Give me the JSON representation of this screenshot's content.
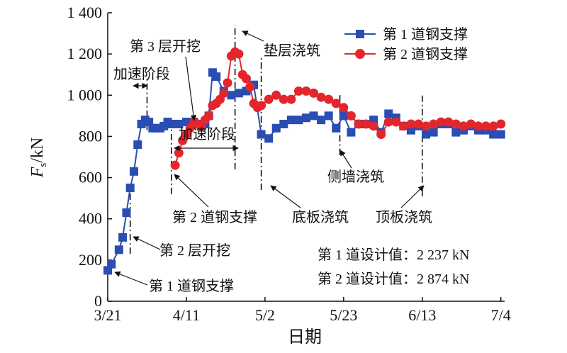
{
  "chart_data": {
    "type": "line",
    "xlabel": "日期",
    "ylabel": "F_s/kN",
    "ylabel_main": "F",
    "ylabel_sub": "s",
    "ylabel_unit": "/kN",
    "ylim": [
      0,
      1400
    ],
    "yticks": [
      0,
      200,
      400,
      600,
      800,
      1000,
      1200,
      1400
    ],
    "ytick_labels": [
      "0",
      "200",
      "400",
      "600",
      "800",
      "1 000",
      "1 200",
      "1 400"
    ],
    "xticks": [
      0,
      21,
      42,
      63,
      84,
      105
    ],
    "xtick_labels": [
      "3/21",
      "4/11",
      "5/2",
      "5/23",
      "6/13",
      "7/4"
    ],
    "xlim": [
      0,
      106
    ],
    "grid": false,
    "legend_position": "top-right",
    "series": [
      {
        "name": "第 1 道钢支撑",
        "color": "#2a4db4",
        "marker": "square",
        "x": [
          0,
          1,
          3,
          4,
          5,
          6,
          7,
          8,
          9,
          10,
          11,
          12,
          13,
          14,
          15,
          16,
          17,
          19,
          21,
          22,
          23,
          24,
          25,
          26,
          27,
          28,
          29,
          31,
          33,
          35,
          37,
          39,
          41,
          43,
          45,
          47,
          49,
          51,
          53,
          55,
          57,
          59,
          61,
          63,
          65,
          67,
          69,
          71,
          73,
          75,
          77,
          79,
          81,
          83,
          85,
          87,
          89,
          91,
          93,
          95,
          97,
          99,
          101,
          103,
          105
        ],
        "values": [
          150,
          180,
          250,
          310,
          430,
          550,
          630,
          760,
          860,
          880,
          870,
          840,
          840,
          840,
          850,
          870,
          860,
          860,
          870,
          860,
          870,
          860,
          850,
          860,
          900,
          1110,
          1090,
          1020,
          1000,
          1010,
          1020,
          1050,
          810,
          790,
          840,
          860,
          880,
          880,
          890,
          900,
          880,
          900,
          840,
          900,
          820,
          860,
          860,
          880,
          820,
          910,
          890,
          850,
          830,
          850,
          810,
          820,
          860,
          860,
          820,
          830,
          850,
          830,
          830,
          810,
          810
        ]
      },
      {
        "name": "第 2 道钢支撑",
        "color": "#e3262b",
        "marker": "circle",
        "x": [
          18,
          19,
          20,
          21,
          22,
          23,
          24,
          25,
          26,
          27,
          28,
          29,
          30,
          31,
          32,
          33,
          34,
          35,
          36,
          37,
          38,
          39,
          40,
          41,
          43,
          45,
          47,
          49,
          51,
          53,
          55,
          57,
          59,
          61,
          63,
          65,
          67,
          69,
          71,
          73,
          75,
          77,
          79,
          81,
          83,
          85,
          87,
          89,
          91,
          93,
          95,
          97,
          99,
          101,
          103,
          105
        ],
        "values": [
          660,
          720,
          780,
          810,
          840,
          870,
          860,
          850,
          880,
          900,
          950,
          960,
          980,
          1010,
          1060,
          1190,
          1210,
          1200,
          1100,
          1080,
          1040,
          960,
          940,
          950,
          980,
          1000,
          980,
          980,
          1020,
          1020,
          1010,
          990,
          980,
          960,
          940,
          900,
          860,
          860,
          850,
          810,
          870,
          870,
          850,
          860,
          860,
          850,
          860,
          870,
          870,
          860,
          850,
          860,
          850,
          850,
          850,
          860
        ]
      }
    ],
    "annotations": [
      {
        "text": "第 3 层开挖"
      },
      {
        "text": "加速阶段"
      },
      {
        "text": "加速阶段"
      },
      {
        "text": "垫层浇筑"
      },
      {
        "text": "第 2 道钢支撑"
      },
      {
        "text": "底板浇筑"
      },
      {
        "text": "侧墙浇筑"
      },
      {
        "text": "顶板浇筑"
      },
      {
        "text": "第 2 层开挖"
      },
      {
        "text": "第 1 道钢支撑"
      }
    ]
  },
  "design_values": {
    "line1": "第 1 道设计值：2 237 kN",
    "line2": "第 2 道设计值：2 874 kN"
  }
}
